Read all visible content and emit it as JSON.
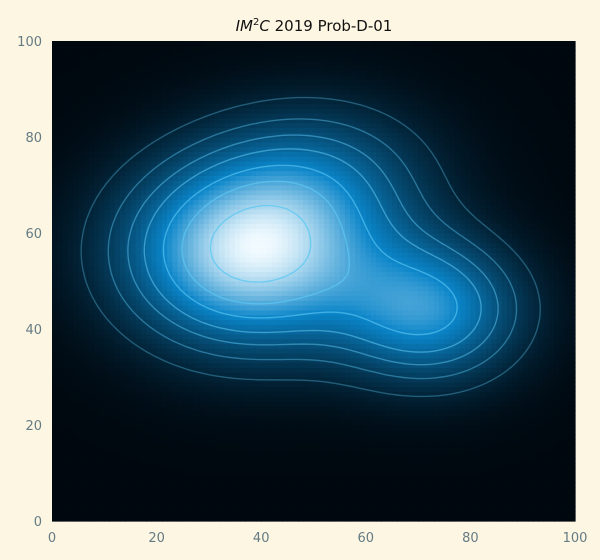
{
  "colors": {
    "background": "#fdf6e3",
    "colormap_low": "#00080f",
    "colormap_mid": "#0a85c9",
    "colormap_high": "#f2fbff",
    "contour": "#5ec8f2",
    "tick_text": "#657b83",
    "title_text": "#111111"
  },
  "chart_data": {
    "type": "heatmap",
    "title": {
      "prefix_italic": "IM",
      "superscript": "2",
      "suffix_italic": "C",
      "rest": " 2019 Prob-D-01"
    },
    "xlabel": "",
    "ylabel": "",
    "xlim": [
      0,
      100
    ],
    "ylim": [
      0,
      100
    ],
    "x_ticks": [
      0,
      20,
      40,
      60,
      80,
      100
    ],
    "y_ticks": [
      0,
      20,
      40,
      60,
      80,
      100
    ],
    "grid": false,
    "colormap": "blue-white",
    "density_components": [
      {
        "center_x": 38,
        "center_y": 56,
        "sigma_x": 16,
        "sigma_y": 13,
        "weight": 1.0
      },
      {
        "center_x": 72,
        "center_y": 44,
        "sigma_x": 12,
        "sigma_y": 10,
        "weight": 0.62
      },
      {
        "center_x": 52,
        "center_y": 72,
        "sigma_x": 15,
        "sigma_y": 11,
        "weight": 0.28
      }
    ],
    "contour_levels": [
      0.12,
      0.22,
      0.32,
      0.42,
      0.55,
      0.68,
      0.86
    ],
    "grid_resolution": 100
  }
}
